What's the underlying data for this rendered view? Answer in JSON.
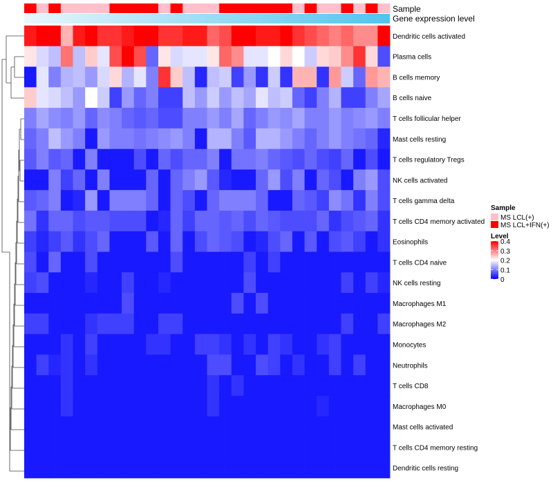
{
  "chart_data": {
    "type": "heatmap",
    "title": "",
    "annotation_labels": {
      "sample": "Sample",
      "gene_expression": "Gene expression level"
    },
    "columns": 30,
    "sample_groups": [
      "MS LCL+IFN(+)",
      "MS LCL(+)",
      "MS LCL+IFN(+)",
      "MS LCL(+)",
      "MS LCL(+)",
      "MS LCL(+)",
      "MS LCL(+)",
      "MS LCL+IFN(+)",
      "MS LCL+IFN(+)",
      "MS LCL+IFN(+)",
      "MS LCL+IFN(+)",
      "MS LCL(+)",
      "MS LCL+IFN(+)",
      "MS LCL(+)",
      "MS LCL(+)",
      "MS LCL(+)",
      "MS LCL+IFN(+)",
      "MS LCL+IFN(+)",
      "MS LCL+IFN(+)",
      "MS LCL+IFN(+)",
      "MS LCL+IFN(+)",
      "MS LCL+IFN(+)",
      "MS LCL(+)",
      "MS LCL+IFN(+)",
      "MS LCL(+)",
      "MS LCL(+)",
      "MS LCL+IFN(+)",
      "MS LCL(+)",
      "MS LCL+IFN(+)",
      "MS LCL(+)"
    ],
    "rows": [
      {
        "label": "Dendritic cells activated",
        "values": [
          0.38,
          0.4,
          0.4,
          0.26,
          0.38,
          0.4,
          0.36,
          0.36,
          0.38,
          0.4,
          0.4,
          0.36,
          0.36,
          0.38,
          0.38,
          0.32,
          0.34,
          0.4,
          0.4,
          0.38,
          0.38,
          0.4,
          0.36,
          0.34,
          0.32,
          0.3,
          0.32,
          0.29,
          0.29,
          0.4
        ]
      },
      {
        "label": "Plasma cells",
        "values": [
          0.22,
          0.17,
          0.15,
          0.31,
          0.15,
          0.24,
          0.18,
          0.34,
          0.4,
          0.34,
          0.08,
          0.22,
          0.17,
          0.18,
          0.18,
          0.22,
          0.32,
          0.29,
          0.18,
          0.18,
          0.2,
          0.23,
          0.2,
          0.16,
          0.23,
          0.24,
          0.29,
          0.36,
          0.23,
          0.06
        ]
      },
      {
        "label": "B cells memory",
        "values": [
          0.02,
          0.18,
          0.1,
          0.14,
          0.15,
          0.12,
          0.17,
          0.23,
          0.14,
          0.18,
          0.1,
          0.36,
          0.24,
          0.15,
          0.03,
          0.15,
          0.16,
          0.05,
          0.12,
          0.04,
          0.16,
          0.04,
          0.26,
          0.26,
          0.04,
          0.28,
          0.16,
          0.08,
          0.28,
          0.26
        ]
      },
      {
        "label": "B cells naive",
        "values": [
          0.24,
          0.18,
          0.17,
          0.15,
          0.12,
          0.2,
          0.16,
          0.05,
          0.12,
          0.08,
          0.1,
          0.05,
          0.05,
          0.15,
          0.12,
          0.16,
          0.12,
          0.15,
          0.13,
          0.18,
          0.15,
          0.16,
          0.08,
          0.05,
          0.1,
          0.14,
          0.05,
          0.05,
          0.1,
          0.13
        ]
      },
      {
        "label": "T cells follicular helper",
        "values": [
          0.1,
          0.13,
          0.11,
          0.1,
          0.12,
          0.08,
          0.11,
          0.1,
          0.08,
          0.07,
          0.08,
          0.06,
          0.06,
          0.1,
          0.1,
          0.12,
          0.1,
          0.13,
          0.08,
          0.1,
          0.12,
          0.11,
          0.13,
          0.1,
          0.1,
          0.12,
          0.1,
          0.11,
          0.12,
          0.1
        ]
      },
      {
        "label": "Mast cells resting",
        "values": [
          0.08,
          0.1,
          0.15,
          0.12,
          0.1,
          0.02,
          0.12,
          0.1,
          0.1,
          0.09,
          0.1,
          0.11,
          0.12,
          0.1,
          0.02,
          0.14,
          0.14,
          0.1,
          0.07,
          0.14,
          0.14,
          0.12,
          0.1,
          0.08,
          0.1,
          0.12,
          0.1,
          0.09,
          0.08,
          0.03
        ]
      },
      {
        "label": "T cells regulatory  Tregs",
        "values": [
          0.07,
          0.1,
          0.07,
          0.08,
          0.02,
          0.1,
          0.02,
          0.02,
          0.02,
          0.06,
          0.02,
          0.08,
          0.06,
          0.08,
          0.08,
          0.1,
          0.02,
          0.09,
          0.09,
          0.1,
          0.08,
          0.07,
          0.06,
          0.08,
          0.06,
          0.05,
          0.08,
          0.02,
          0.06,
          0.02
        ]
      },
      {
        "label": "NK cells activated",
        "values": [
          0.02,
          0.02,
          0.1,
          0.05,
          0.08,
          0.02,
          0.1,
          0.02,
          0.02,
          0.02,
          0.08,
          0.02,
          0.08,
          0.1,
          0.12,
          0.07,
          0.03,
          0.02,
          0.02,
          0.08,
          0.12,
          0.06,
          0.1,
          0.02,
          0.08,
          0.06,
          0.02,
          0.1,
          0.12,
          0.06
        ]
      },
      {
        "label": "T cells gamma delta",
        "values": [
          0.07,
          0.08,
          0.1,
          0.02,
          0.03,
          0.12,
          0.02,
          0.1,
          0.1,
          0.1,
          0.08,
          0.02,
          0.08,
          0.06,
          0.02,
          0.08,
          0.1,
          0.1,
          0.1,
          0.08,
          0.02,
          0.02,
          0.08,
          0.07,
          0.05,
          0.11,
          0.09,
          0.04,
          0.1,
          0.06
        ]
      },
      {
        "label": "T cells CD4 memory activated",
        "values": [
          0.09,
          0.04,
          0.08,
          0.08,
          0.06,
          0.07,
          0.07,
          0.06,
          0.06,
          0.06,
          0.02,
          0.03,
          0.08,
          0.05,
          0.08,
          0.08,
          0.07,
          0.08,
          0.06,
          0.08,
          0.07,
          0.06,
          0.06,
          0.06,
          0.08,
          0.04,
          0.06,
          0.07,
          0.08,
          0.04
        ]
      },
      {
        "label": "Eosinophils",
        "values": [
          0.05,
          0.03,
          0.05,
          0.07,
          0.04,
          0.06,
          0.08,
          0.02,
          0.02,
          0.02,
          0.07,
          0.02,
          0.08,
          0.02,
          0.06,
          0.08,
          0.07,
          0.06,
          0.02,
          0.03,
          0.06,
          0.08,
          0.02,
          0.07,
          0.02,
          0.06,
          0.07,
          0.05,
          0.02,
          0.04
        ]
      },
      {
        "label": "T cells CD4 naive",
        "values": [
          0.06,
          0.02,
          0.08,
          0.02,
          0.02,
          0.06,
          0.02,
          0.02,
          0.02,
          0.02,
          0.02,
          0.02,
          0.06,
          0.02,
          0.02,
          0.02,
          0.02,
          0.02,
          0.05,
          0.02,
          0.05,
          0.02,
          0.02,
          0.02,
          0.02,
          0.02,
          0.02,
          0.02,
          0.02,
          0.02
        ]
      },
      {
        "label": "NK cells resting",
        "values": [
          0.05,
          0.06,
          0.02,
          0.02,
          0.02,
          0.03,
          0.02,
          0.02,
          0.05,
          0.02,
          0.02,
          0.03,
          0.02,
          0.02,
          0.02,
          0.02,
          0.02,
          0.02,
          0.06,
          0.02,
          0.02,
          0.02,
          0.02,
          0.02,
          0.02,
          0.02,
          0.05,
          0.02,
          0.05,
          0.03
        ]
      },
      {
        "label": "Macrophages M1",
        "values": [
          0.02,
          0.02,
          0.02,
          0.02,
          0.02,
          0.02,
          0.02,
          0.02,
          0.06,
          0.02,
          0.02,
          0.02,
          0.02,
          0.02,
          0.02,
          0.02,
          0.02,
          0.06,
          0.02,
          0.06,
          0.02,
          0.02,
          0.02,
          0.02,
          0.02,
          0.02,
          0.02,
          0.02,
          0.02,
          0.02
        ]
      },
      {
        "label": "Macrophages M2",
        "values": [
          0.05,
          0.05,
          0.02,
          0.02,
          0.02,
          0.04,
          0.05,
          0.05,
          0.05,
          0.02,
          0.02,
          0.05,
          0.05,
          0.02,
          0.02,
          0.02,
          0.02,
          0.02,
          0.02,
          0.02,
          0.02,
          0.02,
          0.02,
          0.02,
          0.02,
          0.02,
          0.05,
          0.02,
          0.02,
          0.05
        ]
      },
      {
        "label": "Monocytes",
        "values": [
          0.02,
          0.02,
          0.02,
          0.04,
          0.02,
          0.05,
          0.02,
          0.02,
          0.02,
          0.02,
          0.04,
          0.04,
          0.02,
          0.02,
          0.05,
          0.05,
          0.04,
          0.02,
          0.04,
          0.02,
          0.05,
          0.04,
          0.02,
          0.02,
          0.04,
          0.05,
          0.02,
          0.02,
          0.02,
          0.02
        ]
      },
      {
        "label": "Neutrophils",
        "values": [
          0.02,
          0.05,
          0.03,
          0.04,
          0.02,
          0.04,
          0.02,
          0.02,
          0.02,
          0.02,
          0.02,
          0.02,
          0.02,
          0.02,
          0.02,
          0.06,
          0.06,
          0.02,
          0.02,
          0.06,
          0.05,
          0.02,
          0.04,
          0.02,
          0.02,
          0.05,
          0.02,
          0.05,
          0.02,
          0.02
        ]
      },
      {
        "label": "T cells CD8",
        "values": [
          0.02,
          0.02,
          0.02,
          0.04,
          0.02,
          0.02,
          0.02,
          0.02,
          0.02,
          0.02,
          0.02,
          0.02,
          0.02,
          0.02,
          0.02,
          0.04,
          0.02,
          0.04,
          0.02,
          0.02,
          0.02,
          0.02,
          0.02,
          0.02,
          0.02,
          0.02,
          0.02,
          0.02,
          0.02,
          0.02
        ]
      },
      {
        "label": "Macrophages M0",
        "values": [
          0.02,
          0.02,
          0.02,
          0.04,
          0.02,
          0.02,
          0.02,
          0.02,
          0.02,
          0.02,
          0.02,
          0.02,
          0.02,
          0.02,
          0.02,
          0.04,
          0.02,
          0.02,
          0.02,
          0.02,
          0.02,
          0.02,
          0.02,
          0.02,
          0.03,
          0.02,
          0.02,
          0.02,
          0.02,
          0.02
        ]
      },
      {
        "label": "Mast cells activated",
        "values": [
          0.02,
          0.02,
          0.02,
          0.02,
          0.02,
          0.02,
          0.02,
          0.02,
          0.02,
          0.02,
          0.02,
          0.02,
          0.02,
          0.02,
          0.02,
          0.02,
          0.02,
          0.02,
          0.02,
          0.02,
          0.02,
          0.02,
          0.02,
          0.02,
          0.02,
          0.02,
          0.02,
          0.02,
          0.02,
          0.02
        ]
      },
      {
        "label": "T cells CD4 memory resting",
        "values": [
          0.02,
          0.02,
          0.02,
          0.02,
          0.02,
          0.02,
          0.02,
          0.02,
          0.02,
          0.02,
          0.02,
          0.02,
          0.02,
          0.02,
          0.02,
          0.02,
          0.02,
          0.02,
          0.02,
          0.02,
          0.02,
          0.02,
          0.02,
          0.02,
          0.02,
          0.02,
          0.02,
          0.02,
          0.02,
          0.02
        ]
      },
      {
        "label": "Dendritic cells resting",
        "values": [
          0.02,
          0.02,
          0.02,
          0.02,
          0.02,
          0.02,
          0.02,
          0.02,
          0.02,
          0.02,
          0.02,
          0.02,
          0.02,
          0.02,
          0.02,
          0.02,
          0.02,
          0.02,
          0.02,
          0.02,
          0.02,
          0.02,
          0.02,
          0.02,
          0.02,
          0.02,
          0.02,
          0.02,
          0.02,
          0.02
        ]
      }
    ],
    "legend": {
      "sample": {
        "title": "Sample",
        "entries": [
          {
            "label": "MS LCL(+)",
            "color": "#ffc0cb"
          },
          {
            "label": "MS LCL+IFN(+)",
            "color": "#ff0000"
          }
        ]
      },
      "level": {
        "title": "Level",
        "range": [
          0,
          0.4
        ],
        "ticks": [
          "0.4",
          "0.3",
          "0.2",
          "0.1",
          "0"
        ],
        "colors": {
          "low": "#0000ff",
          "mid": "#ffffff",
          "high": "#ff0000"
        }
      }
    },
    "gene_expression_colors": {
      "start": "#eaf6fc",
      "end": "#4fc4ef"
    }
  }
}
